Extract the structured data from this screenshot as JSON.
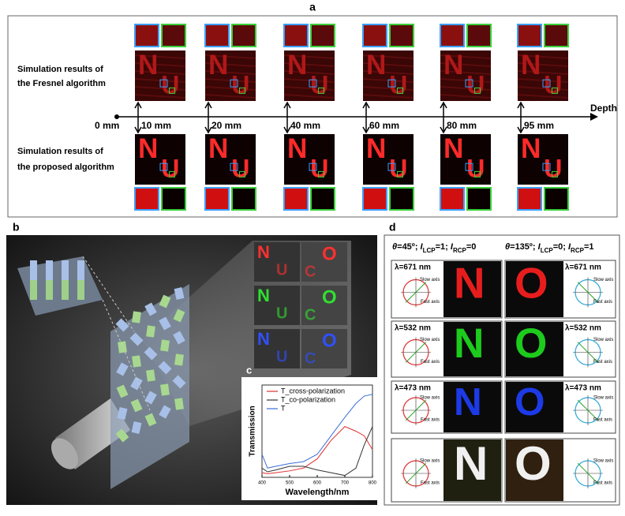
{
  "panel_a": {
    "label": "a",
    "depth_label": "Depth",
    "origin": "0 mm",
    "depths": [
      "10 mm",
      "20 mm",
      "40 mm",
      "60 mm",
      "80 mm",
      "95 mm"
    ],
    "fresnel_label": [
      "Simulation results of",
      "the Fresnel algorithm"
    ],
    "proposed_label": [
      "Simulation results of",
      "the proposed algorithm"
    ],
    "letters": [
      "N",
      "U"
    ]
  },
  "panel_b": {
    "label": "b",
    "letters": [
      "N",
      "U",
      "C",
      "O"
    ]
  },
  "panel_c": {
    "label": "c"
  },
  "chart_data": {
    "type": "line",
    "x_label": "Wavelength/nm",
    "y_label": "Transmission",
    "x": [
      400,
      420,
      450,
      500,
      550,
      600,
      650,
      700,
      740,
      770,
      800
    ],
    "xlim": [
      400,
      800
    ],
    "xticks": [
      400,
      500,
      600,
      700,
      800
    ],
    "ylim": [
      0,
      1
    ],
    "series": [
      {
        "name": "T_cross-polarization",
        "color": "#e03030",
        "values": [
          0.05,
          0.04,
          0.05,
          0.07,
          0.1,
          0.2,
          0.4,
          0.55,
          0.5,
          0.45,
          0.3
        ]
      },
      {
        "name": "T_co-polarization",
        "color": "#333333",
        "values": [
          0.1,
          0.06,
          0.08,
          0.12,
          0.12,
          0.08,
          0.05,
          0.02,
          0.1,
          0.35,
          0.55
        ]
      },
      {
        "name": "T",
        "color": "#3a6fd8",
        "values": [
          0.25,
          0.1,
          0.12,
          0.15,
          0.17,
          0.25,
          0.45,
          0.65,
          0.8,
          0.88,
          0.9
        ]
      }
    ]
  },
  "panel_d": {
    "label": "d",
    "header_left": [
      "θ",
      "=45º; ",
      "I",
      "LCP",
      "=1; ",
      "I",
      "RCP",
      "=0"
    ],
    "header_right": [
      "θ",
      "=135º; ",
      "I",
      "LCP",
      "=0; ",
      "I",
      "RCP",
      "=1"
    ],
    "wavelengths": [
      "λ=671 nm",
      "λ=532 nm",
      "λ=473 nm"
    ],
    "slow_axis": "Slow axis",
    "fast_axis": "Fast axis",
    "letters": [
      "N",
      "O"
    ]
  }
}
